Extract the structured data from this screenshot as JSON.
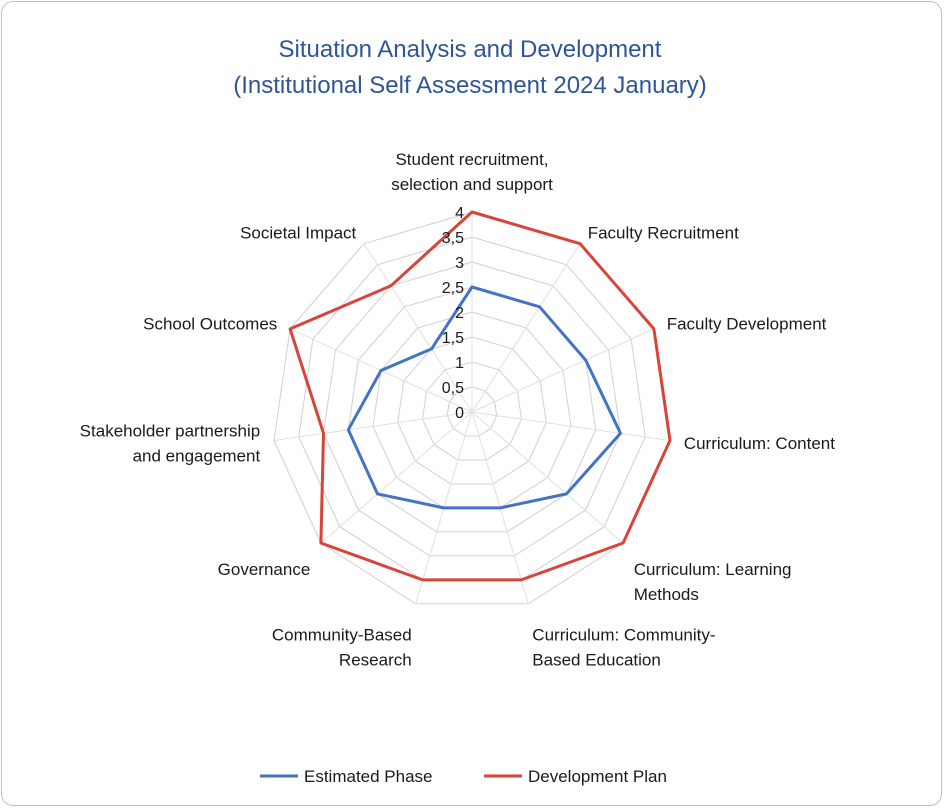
{
  "chart_data": {
    "type": "radar",
    "title_line1": "Situation Analysis and Development",
    "title_line2": "(Institutional Self Assessment  2024 January)",
    "categories": [
      "Student recruitment, selection and support",
      "Faculty Recruitment",
      "Faculty Development",
      "Curriculum: Content",
      "Curriculum: Learning Methods",
      "Curriculum: Community-Based Education",
      "Community-Based Research",
      "Governance",
      "Stakeholder partnership and engagement",
      "School Outcomes",
      "Societal Impact"
    ],
    "category_lines": [
      [
        "Student recruitment,",
        "selection and support"
      ],
      [
        "Faculty Recruitment"
      ],
      [
        "Faculty Development"
      ],
      [
        "Curriculum: Content"
      ],
      [
        "Curriculum: Learning",
        "Methods"
      ],
      [
        "Curriculum: Community-",
        "Based Education"
      ],
      [
        "Community-Based",
        "Research"
      ],
      [
        "Governance"
      ],
      [
        "Stakeholder partnership",
        "and engagement"
      ],
      [
        "School Outcomes"
      ],
      [
        "Societal Impact"
      ]
    ],
    "ticks": [
      "0",
      "0,5",
      "1",
      "1,5",
      "2",
      "2,5",
      "3",
      "3,5",
      "4"
    ],
    "rmax": 4,
    "series": [
      {
        "name": "Estimated Phase",
        "color": "#4472c4",
        "values": [
          2.5,
          2.5,
          2.5,
          3.0,
          2.5,
          2.0,
          2.0,
          2.5,
          2.5,
          2.0,
          1.5
        ]
      },
      {
        "name": "Development Plan",
        "color": "#d9443a",
        "values": [
          4,
          4,
          4,
          4,
          4,
          3.5,
          3.5,
          4,
          3.0,
          4,
          3.0
        ]
      }
    ],
    "grid": true,
    "legend": "bottom"
  }
}
